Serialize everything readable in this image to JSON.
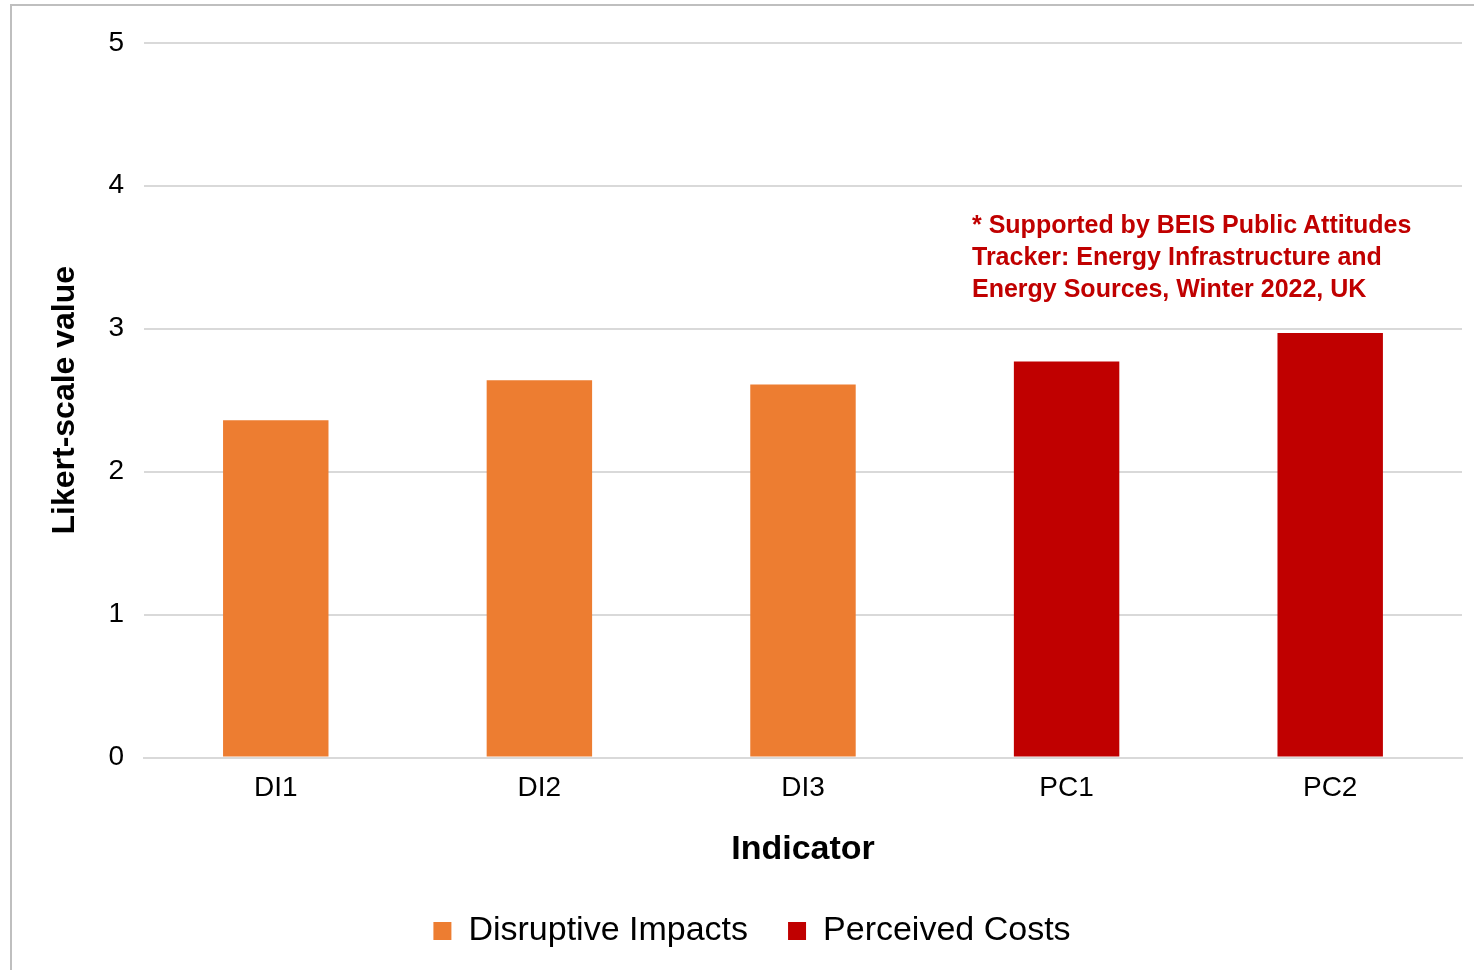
{
  "chart_data": {
    "type": "bar",
    "xlabel": "Indicator",
    "ylabel": "Likert-scale value",
    "categories": [
      "DI1",
      "DI2",
      "DI3",
      "PC1",
      "PC2"
    ],
    "series": [
      {
        "name": "Disruptive Impacts",
        "color": "#ed7d31",
        "values": [
          2.36,
          2.64,
          2.61,
          null,
          null
        ]
      },
      {
        "name": "Perceived Costs",
        "color": "#c00000",
        "values": [
          null,
          null,
          null,
          2.77,
          2.97
        ]
      }
    ],
    "ylim": [
      0,
      5
    ],
    "yticks": [
      0,
      1,
      2,
      3,
      4,
      5
    ],
    "grid": "y",
    "legend": "bottom",
    "annotations": [
      "* Supported by BEIS Public Attitudes Tracker: Energy Infrastructure and Energy Sources, Winter 2022, UK"
    ]
  }
}
